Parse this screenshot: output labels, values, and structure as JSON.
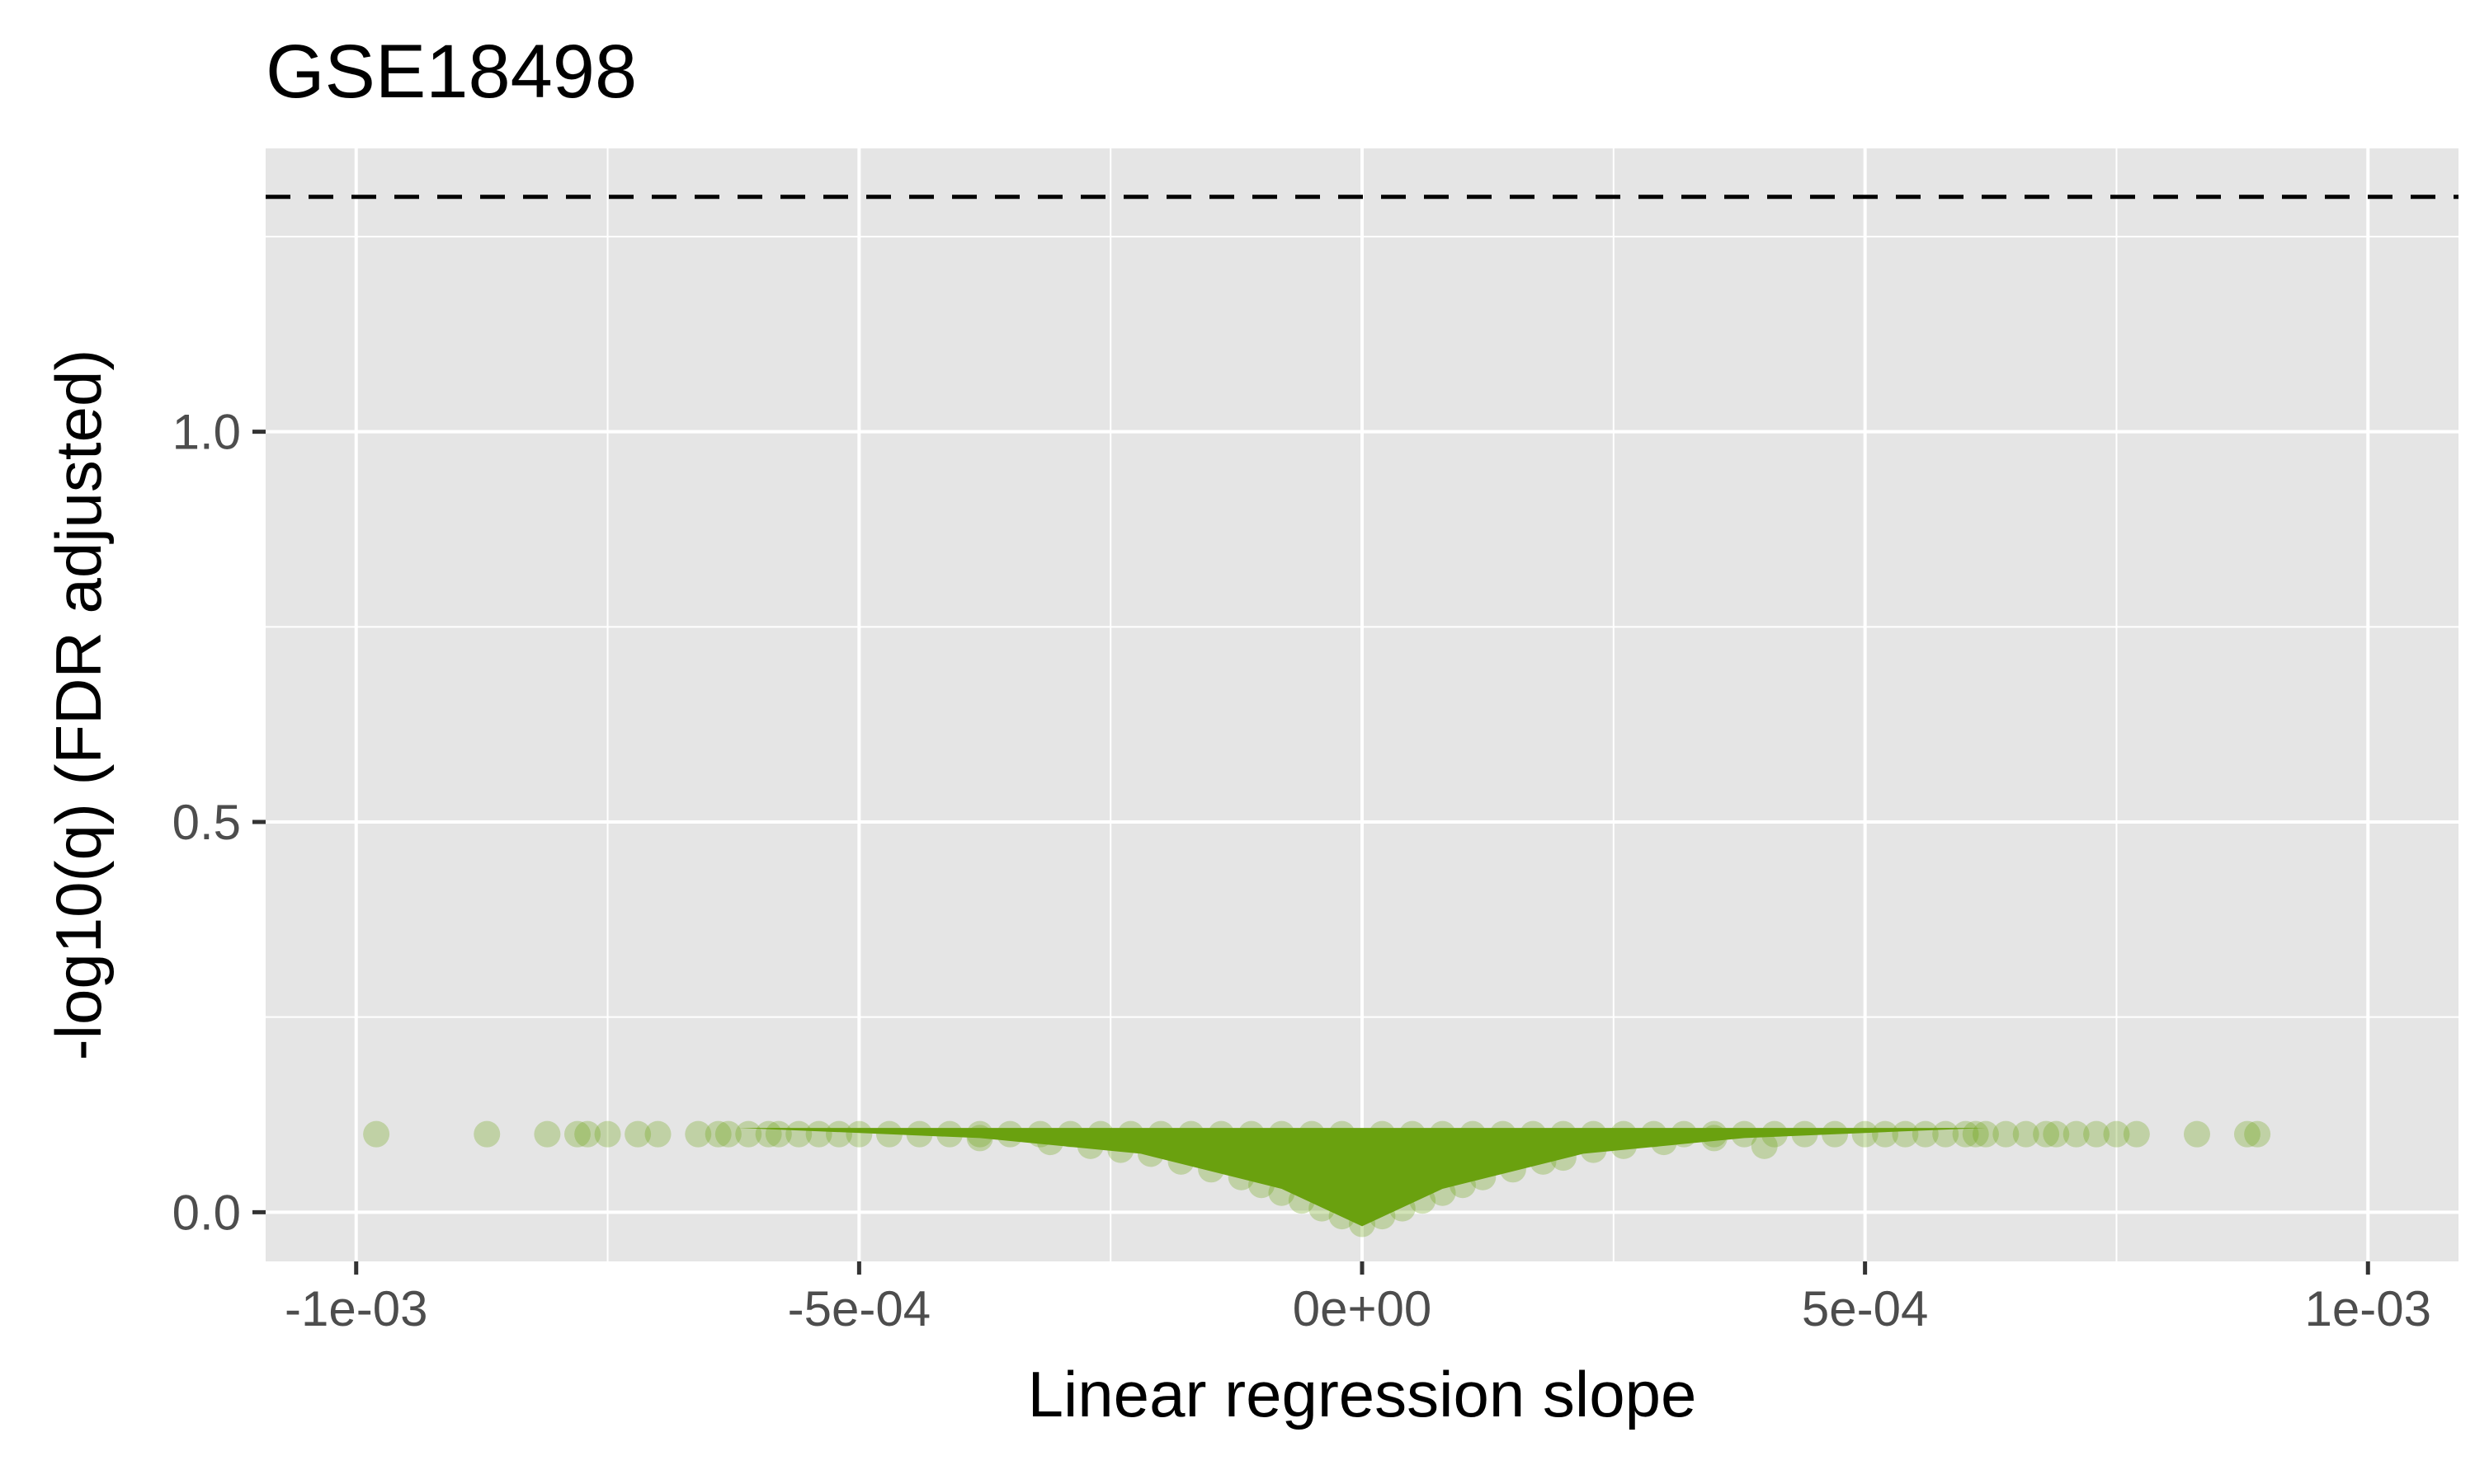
{
  "chart_data": {
    "type": "scatter",
    "title": "GSE18498",
    "xlabel": "Linear regression slope",
    "ylabel": "-log10(q) (FDR adjusted)",
    "xlim": [
      -0.00109,
      0.00109
    ],
    "ylim": [
      -0.063,
      1.363
    ],
    "x_ticks": [
      -0.001,
      -0.0005,
      0,
      0.0005,
      0.001
    ],
    "x_tick_labels": [
      "-1e-03",
      "-5e-04",
      "0e+00",
      "5e-04",
      "1e-03"
    ],
    "y_ticks": [
      0.0,
      0.5,
      1.0
    ],
    "y_tick_labels": [
      "0.0",
      "0.5",
      "1.0"
    ],
    "threshold_line": {
      "y": 1.301,
      "style": "dashed",
      "color": "#000000"
    },
    "point_color": "#6aa10f",
    "point_alpha": 0.3,
    "grid": true,
    "background": "#e5e5e5",
    "legend": "none",
    "series": [
      {
        "points": [
          [
            -0.00098,
            0.1
          ],
          [
            -0.00087,
            0.1
          ],
          [
            -0.00081,
            0.1
          ],
          [
            -0.00078,
            0.1
          ],
          [
            -0.00077,
            0.1
          ],
          [
            -0.00075,
            0.1
          ],
          [
            -0.00072,
            0.1
          ],
          [
            -0.0007,
            0.1
          ],
          [
            -0.00066,
            0.1
          ],
          [
            -0.00064,
            0.1
          ],
          [
            -0.00063,
            0.1
          ],
          [
            -0.00061,
            0.1
          ],
          [
            -0.00059,
            0.1
          ],
          [
            -0.00058,
            0.1
          ],
          [
            -0.00056,
            0.1
          ],
          [
            -0.00054,
            0.1
          ],
          [
            -0.00052,
            0.1
          ],
          [
            -0.0005,
            0.1
          ],
          [
            -0.00047,
            0.1
          ],
          [
            -0.00044,
            0.1
          ],
          [
            -0.00041,
            0.1
          ],
          [
            -0.00038,
            0.1
          ],
          [
            -0.00035,
            0.1
          ],
          [
            -0.00032,
            0.1
          ],
          [
            -0.00029,
            0.1
          ],
          [
            -0.00026,
            0.1
          ],
          [
            -0.00023,
            0.1
          ],
          [
            -0.0002,
            0.1
          ],
          [
            -0.00017,
            0.1
          ],
          [
            -0.00014,
            0.1
          ],
          [
            -0.00011,
            0.1
          ],
          [
            -8e-05,
            0.1
          ],
          [
            -5e-05,
            0.1
          ],
          [
            -2e-05,
            0.1
          ],
          [
            2e-05,
            0.1
          ],
          [
            5e-05,
            0.1
          ],
          [
            8e-05,
            0.1
          ],
          [
            0.00011,
            0.1
          ],
          [
            0.00014,
            0.1
          ],
          [
            0.00017,
            0.1
          ],
          [
            0.0002,
            0.1
          ],
          [
            0.00023,
            0.1
          ],
          [
            0.00026,
            0.1
          ],
          [
            0.00029,
            0.1
          ],
          [
            0.00032,
            0.1
          ],
          [
            0.00035,
            0.1
          ],
          [
            0.00038,
            0.1
          ],
          [
            0.00041,
            0.1
          ],
          [
            0.00044,
            0.1
          ],
          [
            0.00047,
            0.1
          ],
          [
            0.0005,
            0.1
          ],
          [
            0.00052,
            0.1
          ],
          [
            0.00054,
            0.1
          ],
          [
            0.00056,
            0.1
          ],
          [
            0.00058,
            0.1
          ],
          [
            0.0006,
            0.1
          ],
          [
            0.00061,
            0.1
          ],
          [
            0.00062,
            0.1
          ],
          [
            0.00064,
            0.1
          ],
          [
            0.00066,
            0.1
          ],
          [
            0.00068,
            0.1
          ],
          [
            0.00069,
            0.1
          ],
          [
            0.00071,
            0.1
          ],
          [
            0.00073,
            0.1
          ],
          [
            0.00075,
            0.1
          ],
          [
            0.00077,
            0.1
          ],
          [
            0.00083,
            0.1
          ],
          [
            0.00088,
            0.1
          ],
          [
            0.00089,
            0.1
          ],
          [
            -0.00038,
            0.095
          ],
          [
            -0.00031,
            0.09
          ],
          [
            -0.00027,
            0.085
          ],
          [
            -0.00024,
            0.08
          ],
          [
            -0.00021,
            0.075
          ],
          [
            -0.00018,
            0.065
          ],
          [
            -0.00015,
            0.055
          ],
          [
            -0.00012,
            0.045
          ],
          [
            -0.0001,
            0.035
          ],
          [
            -8e-05,
            0.025
          ],
          [
            -6e-05,
            0.015
          ],
          [
            -4e-05,
            0.005
          ],
          [
            -2e-05,
            -0.005
          ],
          [
            0.0,
            -0.015
          ],
          [
            2e-05,
            -0.005
          ],
          [
            4e-05,
            0.005
          ],
          [
            6e-05,
            0.015
          ],
          [
            8e-05,
            0.025
          ],
          [
            0.0001,
            0.035
          ],
          [
            0.00012,
            0.045
          ],
          [
            0.00015,
            0.055
          ],
          [
            0.00018,
            0.065
          ],
          [
            0.0002,
            0.07
          ],
          [
            0.00023,
            0.08
          ],
          [
            0.00026,
            0.085
          ],
          [
            0.0003,
            0.09
          ],
          [
            0.00035,
            0.095
          ],
          [
            0.0004,
            0.085
          ]
        ]
      }
    ]
  }
}
